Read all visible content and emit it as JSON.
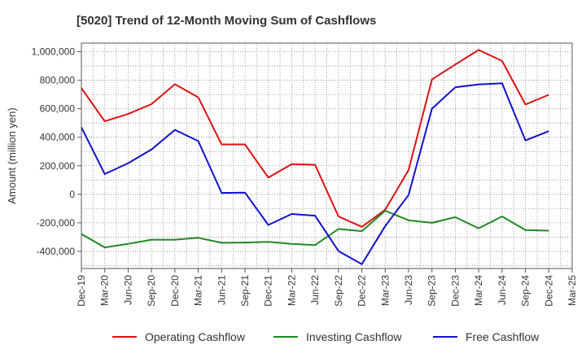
{
  "chart_data": {
    "type": "line",
    "title": "[5020]  Trend of 12-Month Moving Sum of Cashflows",
    "xlabel": "",
    "ylabel": "Amount (million yen)",
    "ylim": [
      -520000,
      1060000
    ],
    "yticks": [
      {
        "value": 1000000,
        "label": "1,000,000"
      },
      {
        "value": 800000,
        "label": "800,000"
      },
      {
        "value": 600000,
        "label": "600,000"
      },
      {
        "value": 400000,
        "label": "400,000"
      },
      {
        "value": 200000,
        "label": "200,000"
      },
      {
        "value": 0,
        "label": "0"
      },
      {
        "value": -200000,
        "label": "-200,000"
      },
      {
        "value": -400000,
        "label": "-400,000"
      }
    ],
    "categories": [
      "Dec-19",
      "Mar-20",
      "Jun-20",
      "Sep-20",
      "Dec-20",
      "Mar-21",
      "Jun-21",
      "Sep-21",
      "Dec-21",
      "Mar-22",
      "Jun-22",
      "Sep-22",
      "Dec-22",
      "Mar-23",
      "Jun-23",
      "Sep-23",
      "Dec-23",
      "Mar-24",
      "Jun-24",
      "Sep-24",
      "Dec-24",
      "Mar-25"
    ],
    "grid": true,
    "legend_position": "bottom",
    "series": [
      {
        "name": "Operating Cashflow",
        "color": "#dd1111",
        "values": [
          745000,
          512000,
          563000,
          632000,
          772000,
          680000,
          350000,
          350000,
          117000,
          212000,
          207000,
          -155000,
          -228000,
          -108000,
          170000,
          805000,
          910000,
          1012000,
          935000,
          630000,
          698000,
          null
        ]
      },
      {
        "name": "Investing Cashflow",
        "color": "#228822",
        "values": [
          -278000,
          -372000,
          -347000,
          -318000,
          -318000,
          -305000,
          -340000,
          -338000,
          -333000,
          -348000,
          -356000,
          -243000,
          -258000,
          -115000,
          -182000,
          -200000,
          -160000,
          -238000,
          -155000,
          -250000,
          -255000,
          null
        ]
      },
      {
        "name": "Free Cashflow",
        "color": "#1111cc",
        "values": [
          470000,
          142000,
          218000,
          314000,
          452000,
          373000,
          10000,
          12000,
          -215000,
          -138000,
          -150000,
          -398000,
          -490000,
          -222000,
          -5000,
          600000,
          750000,
          770000,
          778000,
          378000,
          443000,
          null
        ]
      }
    ]
  }
}
